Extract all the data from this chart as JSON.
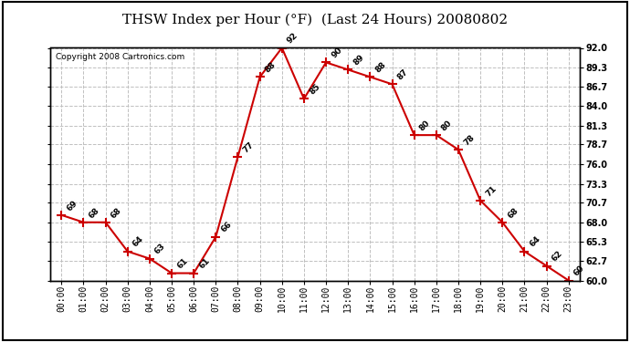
{
  "title": "THSW Index per Hour (°F)  (Last 24 Hours) 20080802",
  "copyright": "Copyright 2008 Cartronics.com",
  "hours": [
    "00:00",
    "01:00",
    "02:00",
    "03:00",
    "04:00",
    "05:00",
    "06:00",
    "07:00",
    "08:00",
    "09:00",
    "10:00",
    "11:00",
    "12:00",
    "13:00",
    "14:00",
    "15:00",
    "16:00",
    "17:00",
    "18:00",
    "19:00",
    "20:00",
    "21:00",
    "22:00",
    "23:00"
  ],
  "values": [
    69,
    68,
    68,
    64,
    63,
    61,
    61,
    66,
    77,
    88,
    92,
    85,
    90,
    89,
    88,
    87,
    80,
    80,
    78,
    71,
    68,
    64,
    62,
    60
  ],
  "line_color": "#cc0000",
  "marker_color": "#cc0000",
  "background_color": "#ffffff",
  "grid_color": "#c0c0c0",
  "text_color": "#000000",
  "ylim_min": 60.0,
  "ylim_max": 92.0,
  "yticks": [
    60.0,
    62.7,
    65.3,
    68.0,
    70.7,
    73.3,
    76.0,
    78.7,
    81.3,
    84.0,
    86.7,
    89.3,
    92.0
  ],
  "title_fontsize": 11,
  "label_fontsize": 6.5,
  "tick_fontsize": 7,
  "copyright_fontsize": 6.5
}
